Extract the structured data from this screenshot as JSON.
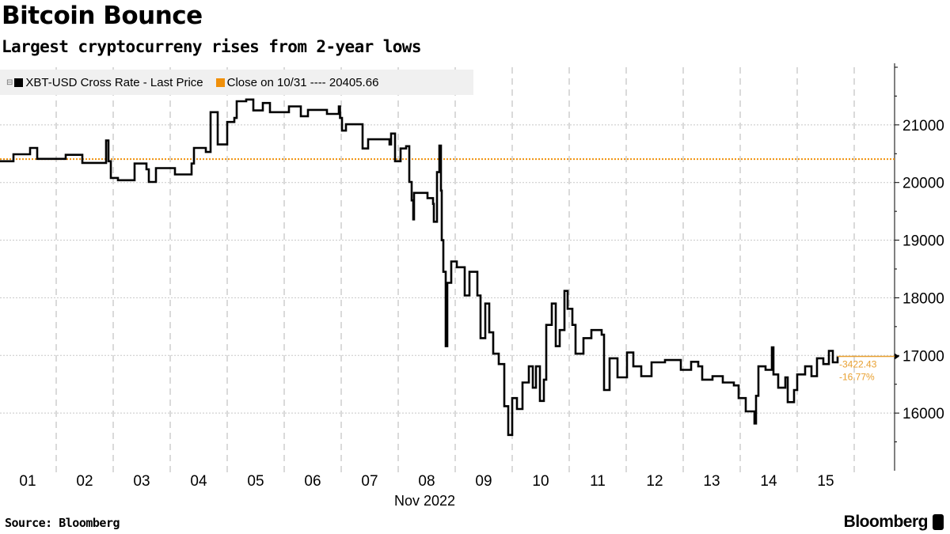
{
  "header": {
    "title": "Bitcoin Bounce",
    "subtitle": "Largest cryptocurreny rises from 2-year lows"
  },
  "legend": {
    "series_label": "XBT-USD Cross Rate - Last Price",
    "reference_label": "Close on 10/31 ---- 20405.66"
  },
  "footer": {
    "source": "Source: Bloomberg",
    "logo": "Bloomberg"
  },
  "colors": {
    "series": "#000000",
    "reference": "#f0900a",
    "annotation": "#e8a030",
    "grid": "#c8c8c8"
  },
  "chart_data": {
    "type": "line",
    "title": "Bitcoin Bounce",
    "subtitle": "Largest cryptocurreny rises from 2-year lows",
    "xlabel": "Nov 2022",
    "x_tick_labels": [
      "01",
      "02",
      "03",
      "04",
      "05",
      "06",
      "07",
      "08",
      "09",
      "10",
      "11",
      "12",
      "13",
      "14",
      "15"
    ],
    "y_tick_labels": [
      "16000",
      "17000",
      "18000",
      "19000",
      "20000",
      "21000"
    ],
    "ylim": [
      15000,
      22000
    ],
    "y_axis_side": "right",
    "grid": true,
    "legend_position": "top-left",
    "reference_line": {
      "name": "Close on 10/31",
      "value": 20405.66
    },
    "last_value_annotation": {
      "change": "-3422.43",
      "change_pct": "-16.77%",
      "last": 16983.23
    },
    "series": [
      {
        "name": "XBT-USD Cross Rate - Last Price",
        "points": [
          [
            "2022-11-01 00:00",
            20370
          ],
          [
            "2022-11-01 06:00",
            20490
          ],
          [
            "2022-11-01 13:00",
            20600
          ],
          [
            "2022-11-01 16:00",
            20410
          ],
          [
            "2022-11-02 04:00",
            20480
          ],
          [
            "2022-11-02 11:00",
            20340
          ],
          [
            "2022-11-02 21:00",
            20730
          ],
          [
            "2022-11-02 22:00",
            20370
          ],
          [
            "2022-11-02 23:00",
            20080
          ],
          [
            "2022-11-03 02:00",
            20040
          ],
          [
            "2022-11-03 09:00",
            20330
          ],
          [
            "2022-11-03 14:00",
            20230
          ],
          [
            "2022-11-03 15:00",
            20010
          ],
          [
            "2022-11-03 18:00",
            20250
          ],
          [
            "2022-11-04 02:00",
            20140
          ],
          [
            "2022-11-04 09:00",
            20330
          ],
          [
            "2022-11-04 10:00",
            20600
          ],
          [
            "2022-11-04 15:00",
            20530
          ],
          [
            "2022-11-04 17:00",
            21220
          ],
          [
            "2022-11-04 20:00",
            20660
          ],
          [
            "2022-11-05 00:00",
            21050
          ],
          [
            "2022-11-05 03:00",
            21120
          ],
          [
            "2022-11-05 04:00",
            21410
          ],
          [
            "2022-11-05 08:00",
            21440
          ],
          [
            "2022-11-05 11:00",
            21250
          ],
          [
            "2022-11-05 15:00",
            21380
          ],
          [
            "2022-11-05 18:00",
            21220
          ],
          [
            "2022-11-06 02:00",
            21320
          ],
          [
            "2022-11-06 07:00",
            21150
          ],
          [
            "2022-11-06 10:00",
            21260
          ],
          [
            "2022-11-06 18:00",
            21190
          ],
          [
            "2022-11-06 23:00",
            21320
          ],
          [
            "2022-11-06 23:30",
            21120
          ],
          [
            "2022-11-07 00:20",
            20900
          ],
          [
            "2022-11-07 02:00",
            21010
          ],
          [
            "2022-11-07 09:00",
            20590
          ],
          [
            "2022-11-07 11:20",
            20750
          ],
          [
            "2022-11-07 20:20",
            20660
          ],
          [
            "2022-11-07 21:00",
            20850
          ],
          [
            "2022-11-07 22:40",
            20370
          ],
          [
            "2022-11-08 01:00",
            20590
          ],
          [
            "2022-11-08 03:20",
            20630
          ],
          [
            "2022-11-08 04:40",
            20010
          ],
          [
            "2022-11-08 05:40",
            19690
          ],
          [
            "2022-11-08 06:20",
            19360
          ],
          [
            "2022-11-08 06:40",
            19820
          ],
          [
            "2022-11-08 12:20",
            19730
          ],
          [
            "2022-11-08 14:40",
            19630
          ],
          [
            "2022-11-08 15:00",
            19320
          ],
          [
            "2022-11-08 16:20",
            20180
          ],
          [
            "2022-11-08 17:20",
            20640
          ],
          [
            "2022-11-08 18:00",
            19860
          ],
          [
            "2022-11-08 18:20",
            19000
          ],
          [
            "2022-11-08 19:00",
            18450
          ],
          [
            "2022-11-08 20:00",
            17160
          ],
          [
            "2022-11-08 20:40",
            18260
          ],
          [
            "2022-11-08 22:20",
            18630
          ],
          [
            "2022-11-09 00:40",
            18530
          ],
          [
            "2022-11-09 04:00",
            18040
          ],
          [
            "2022-11-09 06:00",
            18450
          ],
          [
            "2022-11-09 09:20",
            18040
          ],
          [
            "2022-11-09 10:40",
            17300
          ],
          [
            "2022-11-09 12:40",
            17900
          ],
          [
            "2022-11-09 14:20",
            17400
          ],
          [
            "2022-11-09 16:00",
            17030
          ],
          [
            "2022-11-09 18:20",
            16850
          ],
          [
            "2022-11-09 20:40",
            16120
          ],
          [
            "2022-11-09 22:20",
            15620
          ],
          [
            "2022-11-10 00:00",
            16260
          ],
          [
            "2022-11-10 02:00",
            16070
          ],
          [
            "2022-11-10 04:20",
            16530
          ],
          [
            "2022-11-10 07:00",
            16810
          ],
          [
            "2022-11-10 08:40",
            16440
          ],
          [
            "2022-11-10 10:00",
            16810
          ],
          [
            "2022-11-10 11:40",
            16210
          ],
          [
            "2022-11-10 13:20",
            16580
          ],
          [
            "2022-11-10 14:20",
            17530
          ],
          [
            "2022-11-10 16:40",
            17900
          ],
          [
            "2022-11-10 18:20",
            17160
          ],
          [
            "2022-11-10 20:00",
            17440
          ],
          [
            "2022-11-10 22:00",
            18120
          ],
          [
            "2022-11-10 23:20",
            17810
          ],
          [
            "2022-11-11 01:20",
            17530
          ],
          [
            "2022-11-11 02:40",
            17030
          ],
          [
            "2022-11-11 06:00",
            17300
          ],
          [
            "2022-11-11 09:20",
            17440
          ],
          [
            "2022-11-11 13:40",
            17360
          ],
          [
            "2022-11-11 14:40",
            16400
          ],
          [
            "2022-11-11 17:00",
            16950
          ],
          [
            "2022-11-11 20:20",
            16620
          ],
          [
            "2022-11-12 00:20",
            17050
          ],
          [
            "2022-11-12 03:00",
            16810
          ],
          [
            "2022-11-12 06:20",
            16640
          ],
          [
            "2022-11-12 10:40",
            16880
          ],
          [
            "2022-11-12 16:20",
            16920
          ],
          [
            "2022-11-12 23:00",
            16750
          ],
          [
            "2022-11-13 03:20",
            16890
          ],
          [
            "2022-11-13 06:20",
            16810
          ],
          [
            "2022-11-13 08:00",
            16580
          ],
          [
            "2022-11-13 12:20",
            16640
          ],
          [
            "2022-11-13 16:40",
            16530
          ],
          [
            "2022-11-13 21:20",
            16480
          ],
          [
            "2022-11-13 23:20",
            16260
          ],
          [
            "2022-11-14 02:20",
            16030
          ],
          [
            "2022-11-14 06:00",
            15820
          ],
          [
            "2022-11-14 06:40",
            16300
          ],
          [
            "2022-11-14 07:40",
            16810
          ],
          [
            "2022-11-14 10:40",
            16750
          ],
          [
            "2022-11-14 13:20",
            17140
          ],
          [
            "2022-11-14 14:00",
            16670
          ],
          [
            "2022-11-14 16:00",
            16440
          ],
          [
            "2022-11-14 19:00",
            16620
          ],
          [
            "2022-11-14 20:00",
            16190
          ],
          [
            "2022-11-14 22:40",
            16400
          ],
          [
            "2022-11-15 00:00",
            16670
          ],
          [
            "2022-11-15 03:20",
            16810
          ],
          [
            "2022-11-15 06:00",
            16640
          ],
          [
            "2022-11-15 08:20",
            16950
          ],
          [
            "2022-11-15 11:00",
            16850
          ],
          [
            "2022-11-15 13:20",
            17080
          ],
          [
            "2022-11-15 15:00",
            16880
          ],
          [
            "2022-11-15 17:00",
            16983.23
          ]
        ]
      }
    ]
  }
}
